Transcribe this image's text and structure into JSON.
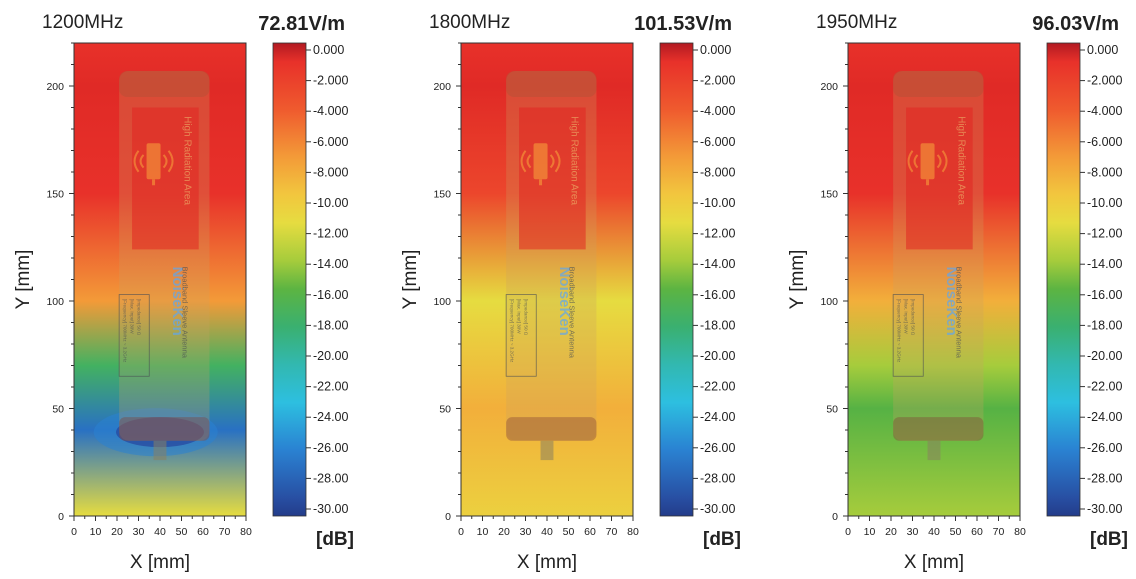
{
  "chart_data": [
    {
      "type": "heatmap",
      "frequency": "1200MHz",
      "peak_field": "72.81V/m",
      "xlabel": "X [mm]",
      "ylabel": "Y [mm]",
      "xlim": [
        0,
        80
      ],
      "ylim": [
        0,
        220
      ],
      "x_ticks": [
        "0",
        "10",
        "20",
        "30",
        "40",
        "50",
        "60",
        "70",
        "80"
      ],
      "y_ticks": [
        "0",
        "50",
        "100",
        "150",
        "200"
      ],
      "y_values_mm": [
        0,
        40,
        70,
        100,
        150,
        200,
        220
      ],
      "relative_level_db": [
        -9,
        -26,
        -15,
        -6,
        -2,
        -1,
        -2
      ],
      "colorbar_unit": "[dB]",
      "colorbar_labels": [
        "0.000",
        "-2.000",
        "-4.000",
        "-6.000",
        "-8.000",
        "-10.00",
        "-12.00",
        "-14.00",
        "-16.00",
        "-18.00",
        "-20.00",
        "-22.00",
        "-24.00",
        "-26.00",
        "-28.00",
        "-30.00"
      ]
    },
    {
      "type": "heatmap",
      "frequency": "1800MHz",
      "peak_field": "101.53V/m",
      "xlabel": "X [mm]",
      "ylabel": "Y [mm]",
      "xlim": [
        0,
        80
      ],
      "ylim": [
        0,
        220
      ],
      "x_ticks": [
        "0",
        "10",
        "20",
        "30",
        "40",
        "50",
        "60",
        "70",
        "80"
      ],
      "y_ticks": [
        "0",
        "50",
        "100",
        "150",
        "200"
      ],
      "y_values_mm": [
        0,
        50,
        100,
        150,
        200,
        220
      ],
      "relative_level_db": [
        -8.5,
        -7,
        -9,
        -3,
        -1,
        -2
      ],
      "colorbar_unit": "[dB]",
      "colorbar_labels": [
        "0.000",
        "-2.000",
        "-4.000",
        "-6.000",
        "-8.000",
        "-10.00",
        "-12.00",
        "-14.00",
        "-16.00",
        "-18.00",
        "-20.00",
        "-22.00",
        "-24.00",
        "-26.00",
        "-28.00",
        "-30.00"
      ]
    },
    {
      "type": "heatmap",
      "frequency": "1950MHz",
      "peak_field": "96.03V/m",
      "xlabel": "X [mm]",
      "ylabel": "Y [mm]",
      "xlim": [
        0,
        80
      ],
      "ylim": [
        0,
        220
      ],
      "x_ticks": [
        "0",
        "10",
        "20",
        "30",
        "40",
        "50",
        "60",
        "70",
        "80"
      ],
      "y_ticks": [
        "0",
        "50",
        "100",
        "150",
        "200"
      ],
      "y_values_mm": [
        0,
        50,
        70,
        100,
        150,
        200,
        220
      ],
      "relative_level_db": [
        -11,
        -13,
        -11,
        -7,
        -2,
        -1,
        -2
      ],
      "colorbar_unit": "[dB]",
      "colorbar_labels": [
        "0.000",
        "-2.000",
        "-4.000",
        "-6.000",
        "-8.000",
        "-10.00",
        "-12.00",
        "-14.00",
        "-16.00",
        "-18.00",
        "-20.00",
        "-22.00",
        "-24.00",
        "-26.00",
        "-28.00",
        "-30.00"
      ]
    }
  ],
  "antenna_overlay": {
    "zone_label": "High Radiation Area",
    "brand": "NoiseKen",
    "product": "Broadband Sleeve Antenna",
    "spec_lines": [
      "[Frequency] 700MHz ~ 3.2GHz",
      "[Max. Input]          30W",
      "[Impedance]          50 Ω"
    ]
  },
  "colors": {
    "scale": [
      "#c21a22",
      "#e8312a",
      "#f06a30",
      "#f5a83c",
      "#ecd840",
      "#a6cc3c",
      "#4cb048",
      "#34b59a",
      "#2ec2d8",
      "#2a7fd0",
      "#27489f"
    ]
  }
}
